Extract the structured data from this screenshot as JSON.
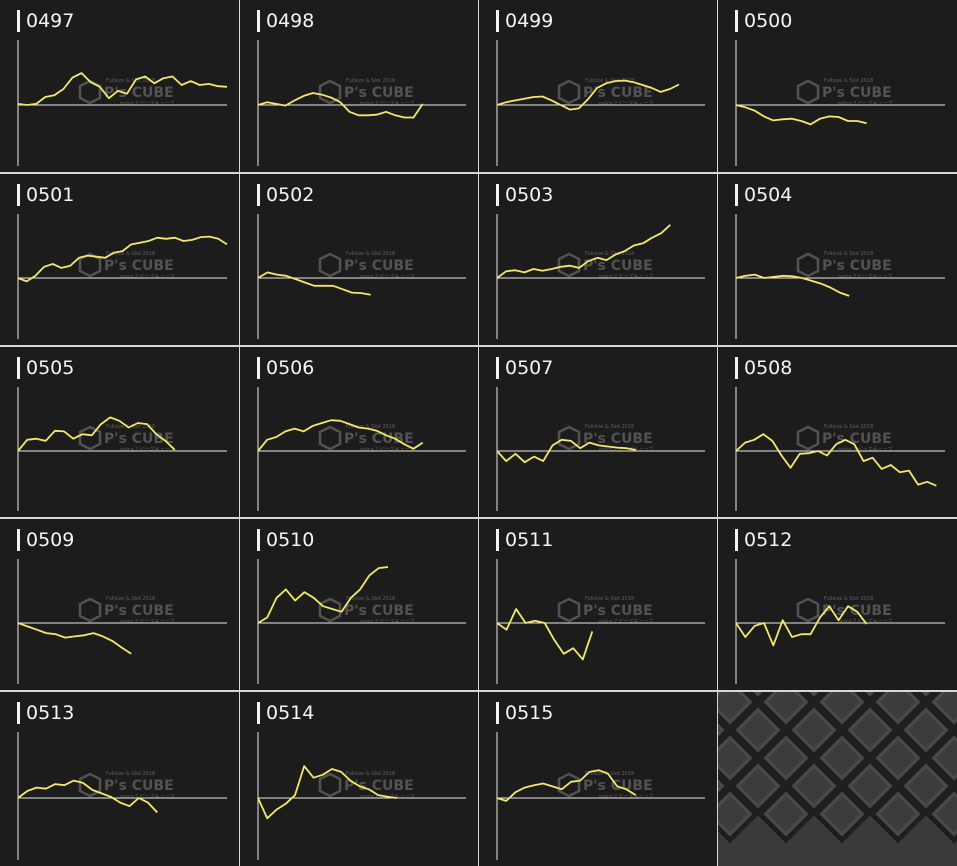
{
  "colors": {
    "background": "#1c1c1c",
    "separator": "#d6d6d6",
    "axis": "#e8e8e8",
    "line": "#f2e86a",
    "title": "#f4f4f4"
  },
  "watermark": {
    "top": "Fullsize & Slot 2018",
    "brand": "P's CUBE",
    "bottom": "noIco.2 ピーズキューブ"
  },
  "decorative_tile": "diamond-pattern-texture",
  "chart_data": [
    {
      "type": "line",
      "title": "0497",
      "baseline": 0,
      "ylim": [
        -1,
        1
      ],
      "values": [
        0.02,
        0.0,
        0.02,
        0.14,
        0.17,
        0.28,
        0.48,
        0.56,
        0.4,
        0.32,
        0.12,
        0.25,
        0.2,
        0.45,
        0.5,
        0.38,
        0.47,
        0.5,
        0.35,
        0.42,
        0.35,
        0.37,
        0.33,
        0.32
      ]
    },
    {
      "type": "line",
      "title": "0498",
      "baseline": 0,
      "ylim": [
        -1,
        1
      ],
      "values": [
        0.0,
        0.05,
        0.02,
        -0.01,
        0.08,
        0.16,
        0.21,
        0.18,
        0.13,
        0.05,
        -0.12,
        -0.18,
        -0.18,
        -0.17,
        -0.12,
        -0.18,
        -0.22,
        -0.22,
        0.02
      ]
    },
    {
      "type": "line",
      "title": "0499",
      "baseline": 0,
      "ylim": [
        -1,
        1
      ],
      "values": [
        0.0,
        0.05,
        0.08,
        0.11,
        0.14,
        0.15,
        0.08,
        0.0,
        -0.08,
        -0.06,
        0.1,
        0.3,
        0.38,
        0.42,
        0.43,
        0.4,
        0.35,
        0.3,
        0.23,
        0.28,
        0.36
      ]
    },
    {
      "type": "line",
      "title": "0500",
      "baseline": 0,
      "ylim": [
        -1,
        1
      ],
      "values": [
        0.0,
        -0.04,
        -0.1,
        -0.2,
        -0.27,
        -0.25,
        -0.24,
        -0.28,
        -0.34,
        -0.24,
        -0.2,
        -0.21,
        -0.28,
        -0.28,
        -0.32
      ]
    },
    {
      "type": "line",
      "title": "0501",
      "baseline": 0,
      "ylim": [
        -1,
        1
      ],
      "values": [
        0.0,
        -0.06,
        0.04,
        0.2,
        0.25,
        0.18,
        0.22,
        0.36,
        0.4,
        0.38,
        0.36,
        0.45,
        0.48,
        0.6,
        0.63,
        0.66,
        0.72,
        0.7,
        0.72,
        0.66,
        0.68,
        0.73,
        0.74,
        0.7,
        0.6
      ]
    },
    {
      "type": "line",
      "title": "0502",
      "baseline": 0,
      "ylim": [
        -1,
        1
      ],
      "values": [
        0.0,
        0.1,
        0.06,
        0.04,
        -0.02,
        -0.08,
        -0.14,
        -0.14,
        -0.14,
        -0.2,
        -0.26,
        -0.27,
        -0.3
      ]
    },
    {
      "type": "line",
      "title": "0503",
      "baseline": 0,
      "ylim": [
        -1,
        1
      ],
      "values": [
        0.0,
        0.12,
        0.14,
        0.1,
        0.16,
        0.13,
        0.16,
        0.2,
        0.22,
        0.18,
        0.3,
        0.36,
        0.32,
        0.42,
        0.48,
        0.58,
        0.62,
        0.72,
        0.8,
        0.95
      ]
    },
    {
      "type": "line",
      "title": "0504",
      "baseline": 0,
      "ylim": [
        -1,
        1
      ],
      "values": [
        0.0,
        0.04,
        0.06,
        0.0,
        0.02,
        0.04,
        0.03,
        0.0,
        -0.05,
        -0.1,
        -0.17,
        -0.26,
        -0.32
      ]
    },
    {
      "type": "line",
      "title": "0505",
      "baseline": 0,
      "ylim": [
        -1,
        1
      ],
      "values": [
        0.0,
        0.2,
        0.22,
        0.18,
        0.36,
        0.35,
        0.22,
        0.3,
        0.28,
        0.48,
        0.6,
        0.54,
        0.42,
        0.5,
        0.48,
        0.3,
        0.18,
        0.02
      ]
    },
    {
      "type": "line",
      "title": "0506",
      "baseline": 0,
      "ylim": [
        -1,
        1
      ],
      "values": [
        0.0,
        0.2,
        0.25,
        0.35,
        0.4,
        0.35,
        0.45,
        0.5,
        0.55,
        0.54,
        0.48,
        0.42,
        0.4,
        0.36,
        0.28,
        0.22,
        0.12,
        0.04,
        0.15
      ]
    },
    {
      "type": "line",
      "title": "0507",
      "baseline": 0,
      "ylim": [
        -1,
        1
      ],
      "values": [
        0.0,
        -0.18,
        -0.05,
        -0.2,
        -0.1,
        -0.18,
        0.1,
        0.2,
        0.18,
        0.05,
        0.15,
        0.1,
        0.08,
        0.06,
        0.05,
        0.02
      ]
    },
    {
      "type": "line",
      "title": "0508",
      "baseline": 0,
      "ylim": [
        -1,
        1
      ],
      "values": [
        0.0,
        0.15,
        0.2,
        0.3,
        0.18,
        -0.08,
        -0.3,
        -0.05,
        -0.04,
        0.0,
        -0.08,
        0.12,
        0.2,
        0.12,
        -0.18,
        -0.12,
        -0.32,
        -0.25,
        -0.38,
        -0.35,
        -0.6,
        -0.55,
        -0.62
      ]
    },
    {
      "type": "line",
      "title": "0509",
      "baseline": 0,
      "ylim": [
        -1,
        1
      ],
      "values": [
        0.0,
        -0.06,
        -0.12,
        -0.18,
        -0.2,
        -0.26,
        -0.24,
        -0.22,
        -0.18,
        -0.24,
        -0.32,
        -0.44,
        -0.55
      ]
    },
    {
      "type": "line",
      "title": "0510",
      "baseline": 0,
      "ylim": [
        -1,
        1
      ],
      "values": [
        0.0,
        0.1,
        0.45,
        0.6,
        0.4,
        0.55,
        0.45,
        0.3,
        0.25,
        0.2,
        0.45,
        0.6,
        0.85,
        0.98,
        1.0
      ]
    },
    {
      "type": "line",
      "title": "0511",
      "baseline": 0,
      "ylim": [
        -1,
        1
      ],
      "values": [
        0.0,
        -0.12,
        0.25,
        0.0,
        0.04,
        0.0,
        -0.3,
        -0.55,
        -0.45,
        -0.65,
        -0.15
      ]
    },
    {
      "type": "line",
      "title": "0512",
      "baseline": 0,
      "ylim": [
        -1,
        1
      ],
      "values": [
        0.0,
        -0.25,
        -0.05,
        0.0,
        -0.4,
        0.05,
        -0.25,
        -0.2,
        -0.2,
        0.1,
        0.3,
        0.05,
        0.3,
        0.2,
        -0.02
      ]
    },
    {
      "type": "line",
      "title": "0513",
      "baseline": 0,
      "ylim": [
        -1,
        1
      ],
      "values": [
        0.0,
        0.12,
        0.18,
        0.16,
        0.24,
        0.22,
        0.3,
        0.26,
        0.14,
        0.08,
        0.02,
        -0.08,
        -0.14,
        0.0,
        -0.08,
        -0.25
      ]
    },
    {
      "type": "line",
      "title": "0514",
      "baseline": 0,
      "ylim": [
        -1,
        1
      ],
      "values": [
        0.0,
        -0.35,
        -0.2,
        -0.1,
        0.05,
        0.55,
        0.35,
        0.4,
        0.5,
        0.45,
        0.3,
        0.2,
        0.15,
        0.05,
        0.02,
        0.0
      ]
    },
    {
      "type": "line",
      "title": "0515",
      "baseline": 0,
      "ylim": [
        -1,
        1
      ],
      "values": [
        0.0,
        -0.05,
        0.1,
        0.18,
        0.22,
        0.25,
        0.2,
        0.15,
        0.28,
        0.3,
        0.45,
        0.48,
        0.42,
        0.2,
        0.15,
        0.05
      ]
    }
  ]
}
